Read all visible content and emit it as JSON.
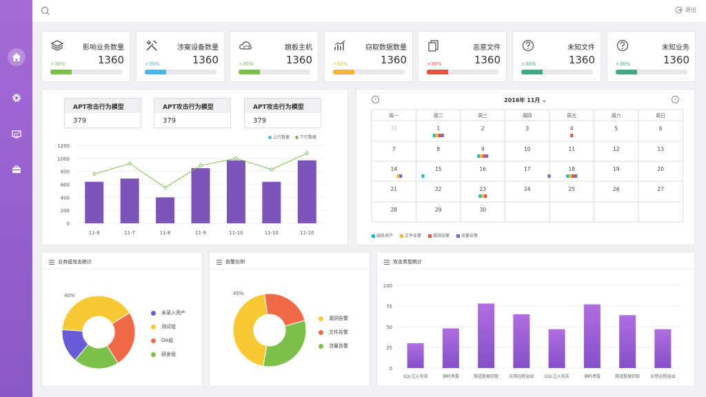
{
  "topbar": {
    "logout_label": "退出"
  },
  "sidebar": {
    "items": [
      "home-icon",
      "gear-icon",
      "monitor-icon",
      "briefcase-icon"
    ]
  },
  "kpis": [
    {
      "label": "影响业务数量",
      "value": "1360",
      "pct": "+30%",
      "color": "#7cc04a",
      "icon": "layers-icon"
    },
    {
      "label": "涉案设备数量",
      "value": "1360",
      "pct": "+30%",
      "color": "#4eb3e8",
      "icon": "tools-icon"
    },
    {
      "label": "跳板主机",
      "value": "1360",
      "pct": "+30%",
      "color": "#7cc04a",
      "icon": "cloud-icon"
    },
    {
      "label": "窃取数据数量",
      "value": "1360",
      "pct": "+30%",
      "color": "#f6b534",
      "icon": "chart-icon"
    },
    {
      "label": "恶意文件",
      "value": "1360",
      "pct": "+30%",
      "color": "#e9503b",
      "icon": "file-icon"
    },
    {
      "label": "未知文件",
      "value": "1360",
      "pct": "+30%",
      "color": "#43a886",
      "icon": "question-icon"
    },
    {
      "label": "未知业务",
      "value": "1360",
      "pct": "+30%",
      "color": "#43a886",
      "icon": "question-icon"
    }
  ],
  "apt_boxes": [
    {
      "title": "APT攻击行为模型",
      "value": "379"
    },
    {
      "title": "APT攻击行为模型",
      "value": "379"
    },
    {
      "title": "APT攻击行为模型",
      "value": "379"
    }
  ],
  "calendar": {
    "title": "2016年 11月",
    "weekdays": [
      "周一",
      "周二",
      "周三",
      "周四",
      "周五",
      "周六",
      "周日"
    ],
    "days": [
      [
        "31",
        "1",
        "2",
        "3",
        "4",
        "5",
        "6"
      ],
      [
        "7",
        "8",
        "9",
        "10",
        "11",
        "12",
        "13"
      ],
      [
        "14",
        "15",
        "16",
        "17",
        "18",
        "19",
        "20"
      ],
      [
        "21",
        "22",
        "23",
        "24",
        "25",
        "26",
        "27"
      ],
      [
        "28",
        "29",
        "30",
        "",
        "",
        "",
        ""
      ]
    ],
    "legend": [
      {
        "label": "威胁资产",
        "color": "#1bb8c8"
      },
      {
        "label": "文件告警",
        "color": "#f6b534"
      },
      {
        "label": "漏洞告警",
        "color": "#e9503b"
      },
      {
        "label": "流量告警",
        "color": "#7564c8"
      }
    ]
  },
  "panels": {
    "group_stats": "业务组攻击统计",
    "alert_ratio": "告警比例",
    "attack_type": "攻击类型统计"
  },
  "chart_data": [
    {
      "type": "bar",
      "categories": [
        "11-6",
        "11-7",
        "11-8",
        "11-9",
        "11-10",
        "11-10",
        "11-10"
      ],
      "series": [
        {
          "name": "上行数据",
          "values": [
            640,
            690,
            400,
            850,
            970,
            640,
            970
          ],
          "color": "#7c55b8"
        },
        {
          "name": "下行数据",
          "values": [
            760,
            920,
            550,
            890,
            1000,
            830,
            1080
          ],
          "color": "#7cc04a"
        }
      ],
      "ylim": [
        0,
        1200
      ],
      "yticks": [
        0,
        200,
        400,
        600,
        800,
        1000,
        1200
      ]
    },
    {
      "type": "pie",
      "labels": [
        "未录入资产",
        "测试组",
        "OA组",
        "研发组"
      ],
      "values": [
        15,
        40,
        25,
        20
      ],
      "colors": [
        "#6a5bd6",
        "#f7ca35",
        "#f06a47",
        "#7cc04a"
      ],
      "annotation": "40%"
    },
    {
      "type": "pie",
      "labels": [
        "漏洞告警",
        "文件告警",
        "流量告警"
      ],
      "values": [
        45,
        23,
        32
      ],
      "colors": [
        "#f7ca35",
        "#f06a47",
        "#7cc04a"
      ],
      "annotation": "45%"
    },
    {
      "type": "bar",
      "categories": [
        "SQL注入攻击",
        "源码泄露",
        "隧道数据窃取",
        "应用远程溢出",
        "SQL注入攻击",
        "源码泄露",
        "隧道数据窃取",
        "应用远程溢出"
      ],
      "values": [
        30,
        48,
        78,
        65,
        47,
        77,
        64,
        47
      ],
      "ylim": [
        0,
        100
      ],
      "yticks": [
        0,
        25,
        50,
        75,
        100
      ]
    }
  ]
}
